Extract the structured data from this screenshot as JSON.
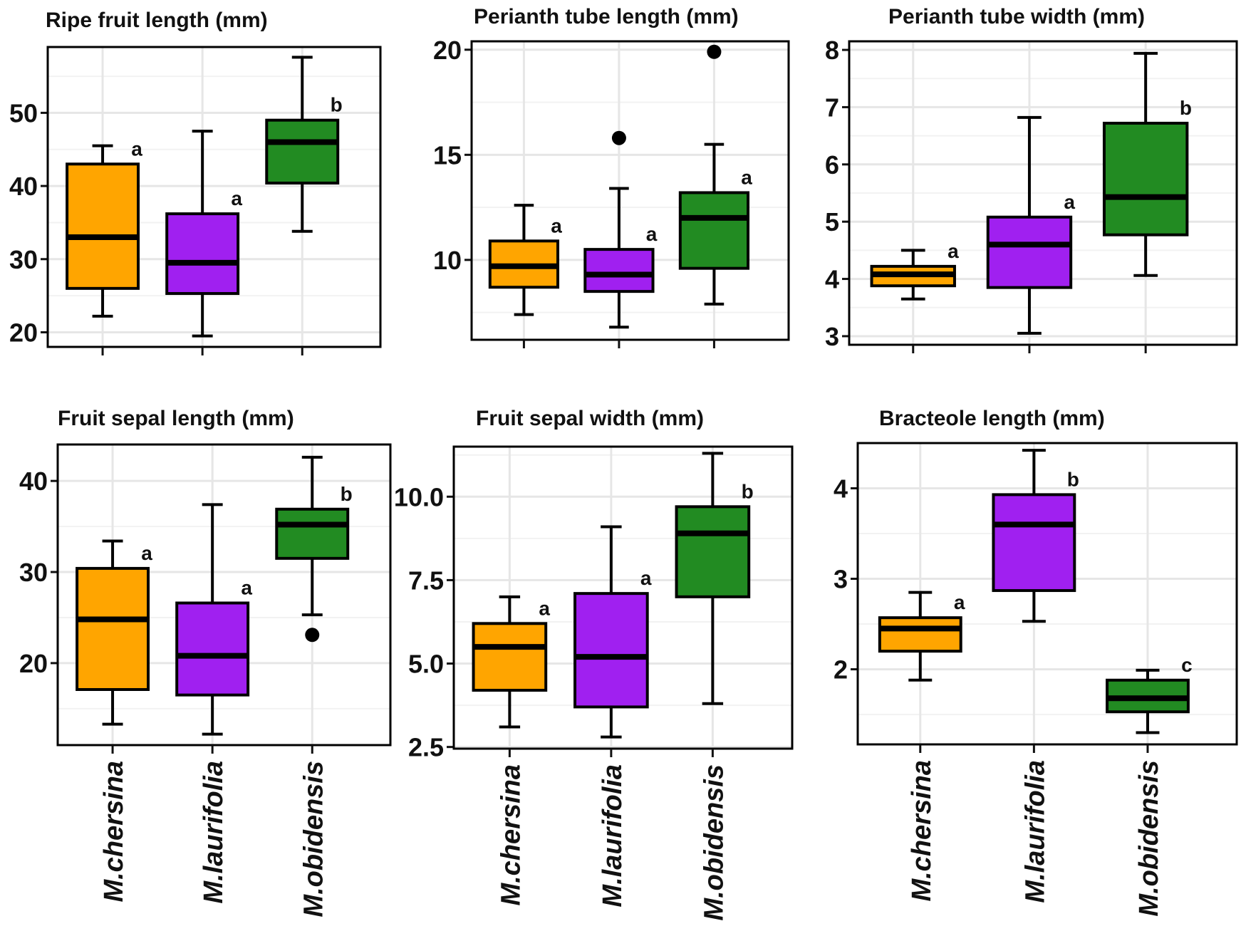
{
  "chart_data": [
    {
      "type": "box",
      "title": "Ripe fruit length (mm)",
      "categories": [
        "M.chersina",
        "M.laurifolia",
        "M.obidensis"
      ],
      "colors": [
        "#FFA500",
        "#A020F0",
        "#228B22"
      ],
      "ylim": [
        18,
        59
      ],
      "yticks": [
        20,
        30,
        40,
        50
      ],
      "ytick_labels": [
        "20",
        "30",
        "40",
        "50"
      ],
      "boxes": [
        {
          "whisker_low": 22.2,
          "q1": 26.0,
          "median": 33.0,
          "q3": 43.0,
          "whisker_high": 45.5,
          "outliers": [],
          "letter": "a"
        },
        {
          "whisker_low": 19.5,
          "q1": 25.3,
          "median": 29.5,
          "q3": 36.2,
          "whisker_high": 47.5,
          "outliers": [],
          "letter": "a"
        },
        {
          "whisker_low": 33.8,
          "q1": 40.4,
          "median": 46.0,
          "q3": 49.0,
          "whisker_high": 57.6,
          "outliers": [],
          "letter": "b"
        }
      ]
    },
    {
      "type": "box",
      "title": "Perianth tube length (mm)",
      "categories": [
        "M.chersina",
        "M.laurifolia",
        "M.obidensis"
      ],
      "colors": [
        "#FFA500",
        "#A020F0",
        "#228B22"
      ],
      "ylim": [
        6.2,
        20.4
      ],
      "yticks": [
        10,
        15,
        20
      ],
      "ytick_labels": [
        "10",
        "15",
        "20"
      ],
      "boxes": [
        {
          "whisker_low": 7.4,
          "q1": 8.7,
          "median": 9.7,
          "q3": 10.9,
          "whisker_high": 12.6,
          "outliers": [],
          "letter": "a"
        },
        {
          "whisker_low": 6.8,
          "q1": 8.5,
          "median": 9.3,
          "q3": 10.5,
          "whisker_high": 13.4,
          "outliers": [
            15.8
          ],
          "letter": "a"
        },
        {
          "whisker_low": 7.9,
          "q1": 9.6,
          "median": 12.0,
          "q3": 13.2,
          "whisker_high": 15.5,
          "outliers": [
            19.9
          ],
          "letter": "a"
        }
      ]
    },
    {
      "type": "box",
      "title": "Perianth tube width (mm)",
      "categories": [
        "M.chersina",
        "M.laurifolia",
        "M.obidensis"
      ],
      "colors": [
        "#FFA500",
        "#A020F0",
        "#228B22"
      ],
      "ylim": [
        2.85,
        8.15
      ],
      "yticks": [
        3,
        4,
        5,
        6,
        7,
        8
      ],
      "ytick_labels": [
        "3",
        "4",
        "5",
        "6",
        "7",
        "8"
      ],
      "boxes": [
        {
          "whisker_low": 3.65,
          "q1": 3.88,
          "median": 4.08,
          "q3": 4.22,
          "whisker_high": 4.5,
          "outliers": [],
          "letter": "a"
        },
        {
          "whisker_low": 3.05,
          "q1": 3.85,
          "median": 4.6,
          "q3": 5.08,
          "whisker_high": 6.82,
          "outliers": [],
          "letter": "a"
        },
        {
          "whisker_low": 4.06,
          "q1": 4.77,
          "median": 5.43,
          "q3": 6.72,
          "whisker_high": 7.94,
          "outliers": [],
          "letter": "b"
        }
      ]
    },
    {
      "type": "box",
      "title": "Fruit sepal length (mm)",
      "categories": [
        "M.chersina",
        "M.laurifolia",
        "M.obidensis"
      ],
      "colors": [
        "#FFA500",
        "#A020F0",
        "#228B22"
      ],
      "ylim": [
        11,
        44
      ],
      "yticks": [
        20,
        30,
        40
      ],
      "ytick_labels": [
        "20",
        "30",
        "40"
      ],
      "boxes": [
        {
          "whisker_low": 13.3,
          "q1": 17.1,
          "median": 24.8,
          "q3": 30.4,
          "whisker_high": 33.4,
          "outliers": [],
          "letter": "a"
        },
        {
          "whisker_low": 12.2,
          "q1": 16.5,
          "median": 20.8,
          "q3": 26.6,
          "whisker_high": 37.4,
          "outliers": [],
          "letter": "a"
        },
        {
          "whisker_low": 25.3,
          "q1": 31.5,
          "median": 35.2,
          "q3": 36.9,
          "whisker_high": 42.6,
          "outliers": [
            23.1
          ],
          "letter": "b"
        }
      ]
    },
    {
      "type": "box",
      "title": "Fruit sepal width (mm)",
      "categories": [
        "M.chersina",
        "M.laurifolia",
        "M.obidensis"
      ],
      "colors": [
        "#FFA500",
        "#A020F0",
        "#228B22"
      ],
      "ylim": [
        2.45,
        11.5
      ],
      "yticks": [
        2.5,
        5.0,
        7.5,
        10.0
      ],
      "ytick_labels": [
        "2.5",
        "5.0",
        "7.5",
        "10.0"
      ],
      "boxes": [
        {
          "whisker_low": 3.1,
          "q1": 4.2,
          "median": 5.5,
          "q3": 6.2,
          "whisker_high": 7.0,
          "outliers": [],
          "letter": "a"
        },
        {
          "whisker_low": 2.8,
          "q1": 3.7,
          "median": 5.2,
          "q3": 7.1,
          "whisker_high": 9.1,
          "outliers": [],
          "letter": "a"
        },
        {
          "whisker_low": 3.8,
          "q1": 7.0,
          "median": 8.9,
          "q3": 9.7,
          "whisker_high": 11.3,
          "outliers": [],
          "letter": "b"
        }
      ]
    },
    {
      "type": "box",
      "title": "Bracteole length (mm)",
      "categories": [
        "M.chersina",
        "M.laurifolia",
        "M.obidensis"
      ],
      "colors": [
        "#FFA500",
        "#A020F0",
        "#228B22"
      ],
      "ylim": [
        1.17,
        4.5
      ],
      "yticks": [
        2,
        3,
        4
      ],
      "ytick_labels": [
        "2",
        "3",
        "4"
      ],
      "boxes": [
        {
          "whisker_low": 1.88,
          "q1": 2.2,
          "median": 2.45,
          "q3": 2.57,
          "whisker_high": 2.85,
          "outliers": [],
          "letter": "a"
        },
        {
          "whisker_low": 2.53,
          "q1": 2.87,
          "median": 3.6,
          "q3": 3.93,
          "whisker_high": 4.42,
          "outliers": [],
          "letter": "b"
        },
        {
          "whisker_low": 1.3,
          "q1": 1.53,
          "median": 1.68,
          "q3": 1.88,
          "whisker_high": 1.99,
          "outliers": [],
          "letter": "c"
        }
      ]
    }
  ]
}
